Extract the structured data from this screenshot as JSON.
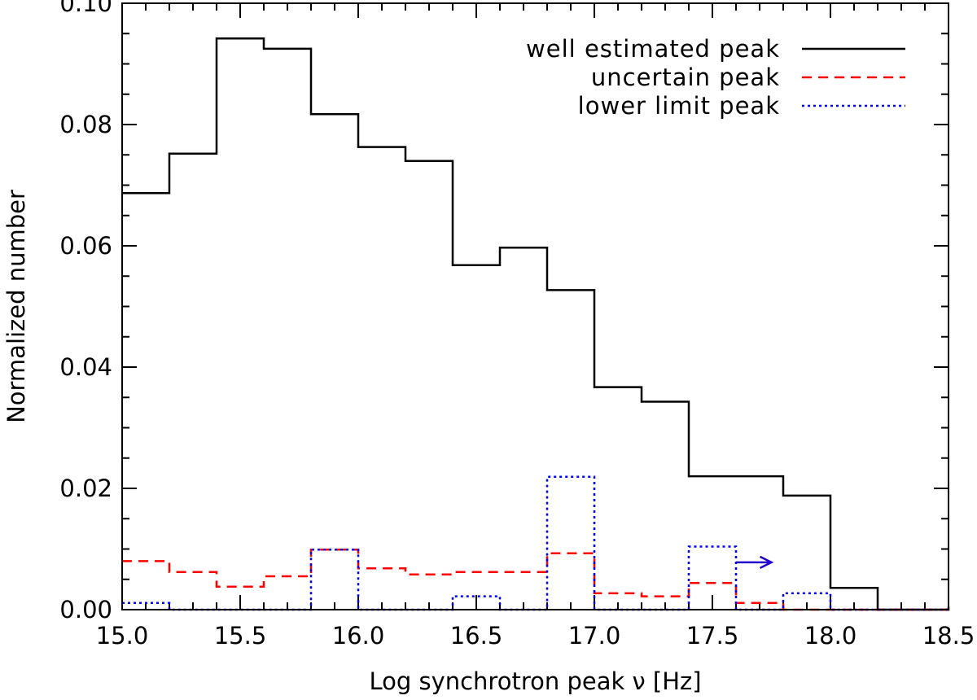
{
  "chart_data": {
    "type": "histogram",
    "xlabel": "Log synchrotron peak ν [Hz]",
    "ylabel": "Normalized number",
    "xlim": [
      15.0,
      18.5
    ],
    "ylim": [
      0.0,
      0.1
    ],
    "x_ticks": [
      "15.0",
      "15.5",
      "16.0",
      "16.5",
      "17.0",
      "17.5",
      "18.0",
      "18.5"
    ],
    "y_ticks": [
      "0.00",
      "0.02",
      "0.04",
      "0.06",
      "0.08",
      "0.10"
    ],
    "x_minor_step": 0.1,
    "y_minor_step": 0.005,
    "grid": false,
    "legend_position": "top-right",
    "bin_edges": [
      15.0,
      15.2,
      15.4,
      15.6,
      15.8,
      16.0,
      16.2,
      16.4,
      16.6,
      16.8,
      17.0,
      17.2,
      17.4,
      17.6,
      17.8,
      18.0,
      18.2,
      18.4,
      18.5
    ],
    "series": [
      {
        "name": "well estimated peak",
        "color": "#000000",
        "style": "solid",
        "values": [
          0.0687,
          0.0752,
          0.0942,
          0.0925,
          0.0817,
          0.0763,
          0.074,
          0.0568,
          0.0597,
          0.0527,
          0.0367,
          0.0343,
          0.022,
          0.022,
          0.0188,
          0.0036,
          0.0,
          0.0,
          0.0005
        ]
      },
      {
        "name": "uncertain peak",
        "color": "#ff0000",
        "style": "dashed",
        "values": [
          0.008,
          0.0062,
          0.0038,
          0.0055,
          0.0099,
          0.0068,
          0.0058,
          0.0062,
          0.0062,
          0.0093,
          0.0027,
          0.0022,
          0.0044,
          0.0011,
          0.0,
          0.0,
          0.0,
          0.0,
          0.0
        ]
      },
      {
        "name": "lower limit peak",
        "color": "#0000ff",
        "style": "dotted",
        "values": [
          0.0011,
          0.0,
          0.0,
          0.0,
          0.0099,
          0.0,
          0.0,
          0.0022,
          0.0,
          0.0219,
          0.0,
          0.0,
          0.0104,
          0.0,
          0.0027,
          0.0,
          0.0,
          0.0,
          0.0
        ]
      }
    ],
    "annotations": [
      {
        "type": "arrow",
        "color": "#2200cc",
        "x_from": 17.6,
        "x_to": 17.75,
        "y": 0.0078
      }
    ]
  }
}
